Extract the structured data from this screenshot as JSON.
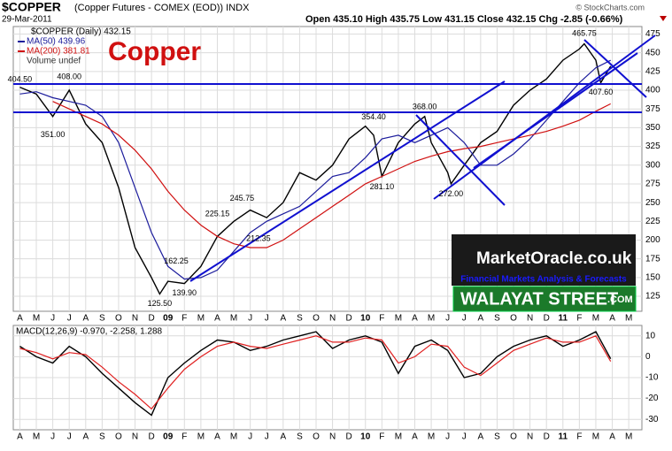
{
  "header": {
    "symbol": "$COPPER",
    "description": "(Copper Futures - COMEX (EOD)) INDX",
    "date": "29-Mar-2011",
    "quote": "Open 435.10  High 435.75  Low 431.15  Close 432.15  Chg -2.85 (-0.66%)",
    "credit": "© StockCharts.com"
  },
  "logo": {
    "site": "MarketOracle.co.uk",
    "tagline": "Financial Markets Analysis & Forecasts",
    "street": "WALAYAT STREET",
    "dotcom": ".COM"
  },
  "chart_data": [
    {
      "type": "line",
      "title": "Copper",
      "volume_note": "Volume undef",
      "xlim": [
        -0.4,
        37.8
      ],
      "ylim": [
        105,
        485
      ],
      "grid": true,
      "yticks": [
        125,
        150,
        175,
        200,
        225,
        250,
        275,
        300,
        325,
        350,
        375,
        400,
        425,
        450,
        475
      ],
      "xticks": [
        {
          "value": 0,
          "label": "A"
        },
        {
          "value": 1,
          "label": "M"
        },
        {
          "value": 2,
          "label": "J"
        },
        {
          "value": 3,
          "label": "J"
        },
        {
          "value": 4,
          "label": "A"
        },
        {
          "value": 5,
          "label": "S"
        },
        {
          "value": 6,
          "label": "O"
        },
        {
          "value": 7,
          "label": "N"
        },
        {
          "value": 8,
          "label": "D"
        },
        {
          "value": 9,
          "label": "09"
        },
        {
          "value": 10,
          "label": "F"
        },
        {
          "value": 11,
          "label": "M"
        },
        {
          "value": 12,
          "label": "A"
        },
        {
          "value": 13,
          "label": "M"
        },
        {
          "value": 14,
          "label": "J"
        },
        {
          "value": 15,
          "label": "J"
        },
        {
          "value": 16,
          "label": "A"
        },
        {
          "value": 17,
          "label": "S"
        },
        {
          "value": 18,
          "label": "O"
        },
        {
          "value": 19,
          "label": "N"
        },
        {
          "value": 20,
          "label": "D"
        },
        {
          "value": 21,
          "label": "10"
        },
        {
          "value": 22,
          "label": "F"
        },
        {
          "value": 23,
          "label": "M"
        },
        {
          "value": 24,
          "label": "A"
        },
        {
          "value": 25,
          "label": "M"
        },
        {
          "value": 26,
          "label": "J"
        },
        {
          "value": 27,
          "label": "J"
        },
        {
          "value": 28,
          "label": "A"
        },
        {
          "value": 29,
          "label": "S"
        },
        {
          "value": 30,
          "label": "O"
        },
        {
          "value": 31,
          "label": "N"
        },
        {
          "value": 32,
          "label": "D"
        },
        {
          "value": 33,
          "label": "11"
        },
        {
          "value": 34,
          "label": "F"
        },
        {
          "value": 35,
          "label": "M"
        },
        {
          "value": 36,
          "label": "A"
        },
        {
          "value": 37,
          "label": "M"
        }
      ],
      "series": [
        {
          "name": "$COPPER (Daily) 432.15",
          "color": "#000000",
          "x": [
            0,
            1,
            2,
            3,
            4,
            5,
            6,
            7,
            8,
            8.5,
            9,
            10,
            11,
            12,
            13,
            14,
            15,
            16,
            17,
            18,
            19,
            20,
            21,
            21.5,
            22,
            23,
            24,
            24.6,
            25,
            26,
            26.2,
            27,
            28,
            29,
            30,
            31,
            32,
            33,
            34,
            34.3,
            35,
            35.3,
            35.9
          ],
          "values": [
            404,
            395,
            365,
            400,
            355,
            330,
            270,
            190,
            150,
            128,
            145,
            142,
            165,
            205,
            225,
            240,
            230,
            250,
            290,
            280,
            300,
            335,
            352,
            340,
            285,
            330,
            355,
            365,
            330,
            290,
            275,
            300,
            330,
            345,
            380,
            400,
            415,
            440,
            455,
            462,
            440,
            410,
            432
          ]
        },
        {
          "name": "MA(50) 439.96",
          "color": "#1c1c9c",
          "x": [
            0,
            1,
            2,
            3,
            4,
            5,
            6,
            7,
            8,
            9,
            10,
            11,
            12,
            13,
            14,
            15,
            16,
            17,
            18,
            19,
            20,
            21,
            22,
            23,
            24,
            25,
            26,
            27,
            28,
            29,
            30,
            31,
            32,
            33,
            34,
            35,
            35.9
          ],
          "values": [
            395,
            398,
            390,
            385,
            380,
            365,
            330,
            270,
            210,
            165,
            148,
            150,
            160,
            185,
            210,
            225,
            235,
            245,
            265,
            285,
            290,
            310,
            335,
            340,
            330,
            340,
            350,
            330,
            300,
            300,
            315,
            335,
            360,
            385,
            410,
            430,
            439.96
          ]
        },
        {
          "name": "MA(200) 381.81",
          "color": "#d01010",
          "x": [
            2,
            3,
            4,
            5,
            6,
            7,
            8,
            9,
            10,
            11,
            12,
            13,
            14,
            15,
            16,
            17,
            18,
            19,
            20,
            21,
            22,
            23,
            24,
            25,
            26,
            27,
            28,
            29,
            30,
            31,
            32,
            33,
            34,
            35,
            35.9
          ],
          "values": [
            385,
            375,
            365,
            355,
            340,
            320,
            295,
            265,
            240,
            220,
            205,
            195,
            190,
            190,
            200,
            215,
            230,
            245,
            260,
            275,
            285,
            295,
            305,
            312,
            318,
            322,
            325,
            330,
            335,
            340,
            345,
            352,
            360,
            372,
            381.81
          ]
        }
      ],
      "annotations": [
        {
          "label": "404.50",
          "x": 0,
          "value": 404.5
        },
        {
          "label": "408.00",
          "x": 3,
          "value": 408
        },
        {
          "label": "351.00",
          "x": 2,
          "value": 351
        },
        {
          "label": "125.50",
          "x": 8.5,
          "value": 125.5
        },
        {
          "label": "139.90",
          "x": 10,
          "value": 139.9
        },
        {
          "label": "162.25",
          "x": 9.5,
          "value": 162.25
        },
        {
          "label": "225.15",
          "x": 12,
          "value": 225.15
        },
        {
          "label": "245.75",
          "x": 13.5,
          "value": 245.75
        },
        {
          "label": "212.35",
          "x": 14.5,
          "value": 212.35
        },
        {
          "label": "354.40",
          "x": 21.5,
          "value": 354.4
        },
        {
          "label": "281.10",
          "x": 22,
          "value": 281.1
        },
        {
          "label": "368.00",
          "x": 24.6,
          "value": 368
        },
        {
          "label": "272.00",
          "x": 26.2,
          "value": 272
        },
        {
          "label": "465.75",
          "x": 34.3,
          "value": 465.75
        },
        {
          "label": "407.60",
          "x": 35.3,
          "value": 407.6
        }
      ]
    },
    {
      "type": "line",
      "legend": "MACD(12,26,9) -0.970, -2.258, 1.288",
      "xlim": [
        -0.4,
        37.8
      ],
      "ylim": [
        -35,
        15
      ],
      "grid": true,
      "yticks": [
        10,
        0,
        -10,
        -20,
        -30
      ],
      "xticks": [
        {
          "value": 0,
          "label": "A"
        },
        {
          "value": 1,
          "label": "M"
        },
        {
          "value": 2,
          "label": "J"
        },
        {
          "value": 3,
          "label": "J"
        },
        {
          "value": 4,
          "label": "A"
        },
        {
          "value": 5,
          "label": "S"
        },
        {
          "value": 6,
          "label": "O"
        },
        {
          "value": 7,
          "label": "N"
        },
        {
          "value": 8,
          "label": "D"
        },
        {
          "value": 9,
          "label": "09"
        },
        {
          "value": 10,
          "label": "F"
        },
        {
          "value": 11,
          "label": "M"
        },
        {
          "value": 12,
          "label": "A"
        },
        {
          "value": 13,
          "label": "M"
        },
        {
          "value": 14,
          "label": "J"
        },
        {
          "value": 15,
          "label": "J"
        },
        {
          "value": 16,
          "label": "A"
        },
        {
          "value": 17,
          "label": "S"
        },
        {
          "value": 18,
          "label": "O"
        },
        {
          "value": 19,
          "label": "N"
        },
        {
          "value": 20,
          "label": "D"
        },
        {
          "value": 21,
          "label": "10"
        },
        {
          "value": 22,
          "label": "F"
        },
        {
          "value": 23,
          "label": "M"
        },
        {
          "value": 24,
          "label": "A"
        },
        {
          "value": 25,
          "label": "M"
        },
        {
          "value": 26,
          "label": "J"
        },
        {
          "value": 27,
          "label": "J"
        },
        {
          "value": 28,
          "label": "A"
        },
        {
          "value": 29,
          "label": "S"
        },
        {
          "value": 30,
          "label": "O"
        },
        {
          "value": 31,
          "label": "N"
        },
        {
          "value": 32,
          "label": "D"
        },
        {
          "value": 33,
          "label": "11"
        },
        {
          "value": 34,
          "label": "F"
        },
        {
          "value": 35,
          "label": "M"
        },
        {
          "value": 36,
          "label": "A"
        },
        {
          "value": 37,
          "label": "M"
        }
      ],
      "series": [
        {
          "color": "#000000",
          "x": [
            0,
            1,
            2,
            3,
            4,
            5,
            6,
            7,
            8,
            9,
            10,
            11,
            12,
            13,
            14,
            15,
            16,
            17,
            18,
            19,
            20,
            21,
            22,
            23,
            24,
            25,
            26,
            27,
            28,
            29,
            30,
            31,
            32,
            33,
            34,
            35,
            35.9
          ],
          "values": [
            5,
            0,
            -3,
            5,
            0,
            -8,
            -15,
            -22,
            -28,
            -10,
            -3,
            3,
            8,
            7,
            3,
            5,
            8,
            10,
            12,
            4,
            8,
            10,
            7,
            -8,
            5,
            8,
            3,
            -10,
            -8,
            0,
            5,
            8,
            10,
            5,
            8,
            12,
            -0.97
          ]
        },
        {
          "color": "#e02020",
          "x": [
            0,
            1,
            2,
            3,
            4,
            5,
            6,
            7,
            8,
            9,
            10,
            11,
            12,
            13,
            14,
            15,
            16,
            17,
            18,
            19,
            20,
            21,
            22,
            23,
            24,
            25,
            26,
            27,
            28,
            29,
            30,
            31,
            32,
            33,
            34,
            35,
            35.9
          ],
          "values": [
            4,
            2,
            -1,
            2,
            1,
            -5,
            -12,
            -18,
            -25,
            -15,
            -6,
            0,
            5,
            7,
            5,
            4,
            6,
            8,
            10,
            7,
            7,
            9,
            8,
            -3,
            0,
            6,
            5,
            -5,
            -9,
            -3,
            3,
            6,
            9,
            7,
            7,
            10,
            -2.258
          ]
        }
      ]
    }
  ]
}
